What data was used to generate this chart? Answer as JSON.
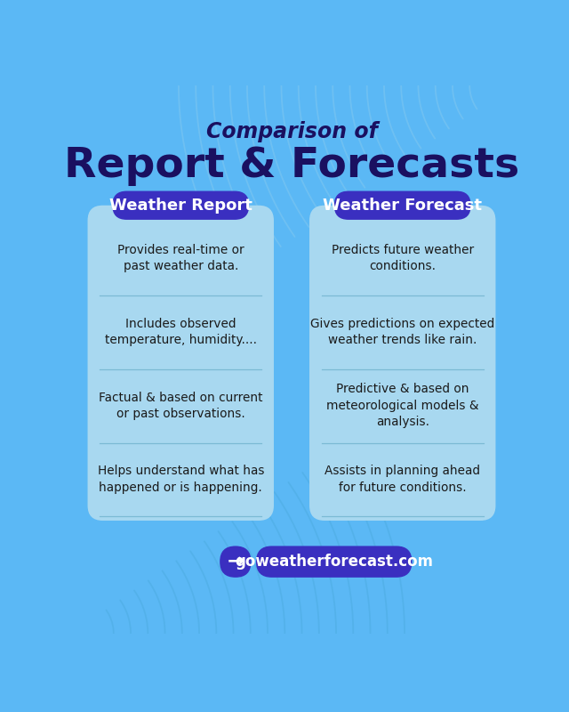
{
  "bg_color": "#5BB8F5",
  "card_color": "#A8D8F0",
  "header_color": "#3A2FC0",
  "dark_navy": "#1A1060",
  "title_line1": "Comparison of",
  "title_line2": "Report & Forecasts",
  "col1_header": "Weather Report",
  "col2_header": "Weather Forecast",
  "col1_items": [
    "Provides real-time or\npast weather data.",
    "Includes observed\ntemperature, humidity....",
    "Factual & based on current\nor past observations.",
    "Helps understand what has\nhappened or is happening."
  ],
  "col2_items": [
    "Predicts future weather\nconditions.",
    "Gives predictions on expected\nweather trends like rain.",
    "Predictive & based on\nmeteorological models &\nanalysis.",
    "Assists in planning ahead\nfor future conditions."
  ],
  "footer_text": "goweatherforecast.com",
  "footer_bg": "#3A2FC0",
  "arrow_bg": "#3A2FC0",
  "item_text_color": "#1A1A1A",
  "divider_color": "#7BBAD4",
  "white": "#FFFFFF",
  "wave_color_tr": "#82C8F0",
  "wave_color_bl": "#4AAADE"
}
